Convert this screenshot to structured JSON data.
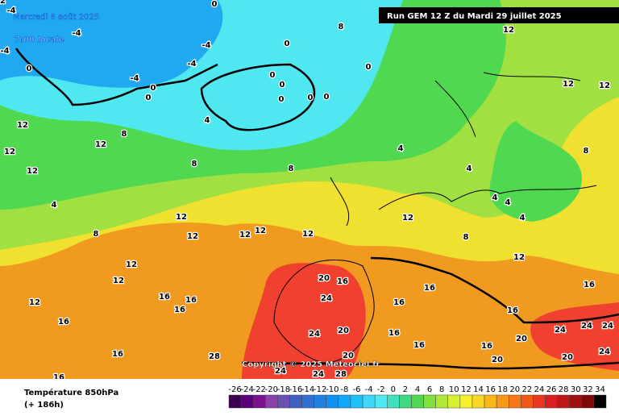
{
  "header": {
    "date": "Mercredi 6 août 2025",
    "time": "7:00 locale",
    "run": "Run GEM 12 Z du Mardi 29 juillet 2025",
    "copyright": "Copyright © 2025 Meteociel.fr"
  },
  "footer": {
    "title": "Température 850hPa",
    "lead": "(+ 186h)"
  },
  "map_labels": [
    0,
    -4,
    -4,
    -4,
    -4,
    -4,
    -4,
    0,
    0,
    0,
    0,
    0,
    0,
    0,
    0,
    0,
    0,
    4,
    4,
    4,
    4,
    4,
    4,
    4,
    8,
    8,
    8,
    8,
    8,
    8,
    8,
    12,
    12,
    12,
    12,
    12,
    12,
    12,
    12,
    12,
    12,
    12,
    12,
    12,
    12,
    12,
    12,
    12,
    16,
    16,
    16,
    16,
    16,
    16,
    16,
    16,
    16,
    16,
    16,
    16,
    16,
    20,
    20,
    20,
    20,
    20,
    20,
    24,
    24,
    24,
    24,
    24,
    24,
    24,
    24,
    28,
    28,
    16,
    12
  ],
  "legend": {
    "values": [
      -26,
      -24,
      -22,
      -20,
      -18,
      -16,
      -14,
      -12,
      -10,
      -8,
      -6,
      -4,
      -2,
      0,
      2,
      4,
      6,
      8,
      10,
      12,
      14,
      16,
      18,
      20,
      22,
      24,
      26,
      28,
      30,
      32,
      34
    ],
    "colors": [
      "#3c0050",
      "#5a0078",
      "#7a1090",
      "#8a40a8",
      "#6a50b0",
      "#4060c0",
      "#3070d0",
      "#2080e0",
      "#1090f0",
      "#10a8f8",
      "#20c0f8",
      "#40d8f8",
      "#50e8f0",
      "#40e0c0",
      "#40d880",
      "#50d850",
      "#80e040",
      "#b0e838",
      "#d8f030",
      "#f8f028",
      "#f8d820",
      "#f8b818",
      "#f89818",
      "#f87818",
      "#f05818",
      "#e83820",
      "#d82020",
      "#c01818",
      "#a01010",
      "#800808",
      "#000000"
    ]
  }
}
